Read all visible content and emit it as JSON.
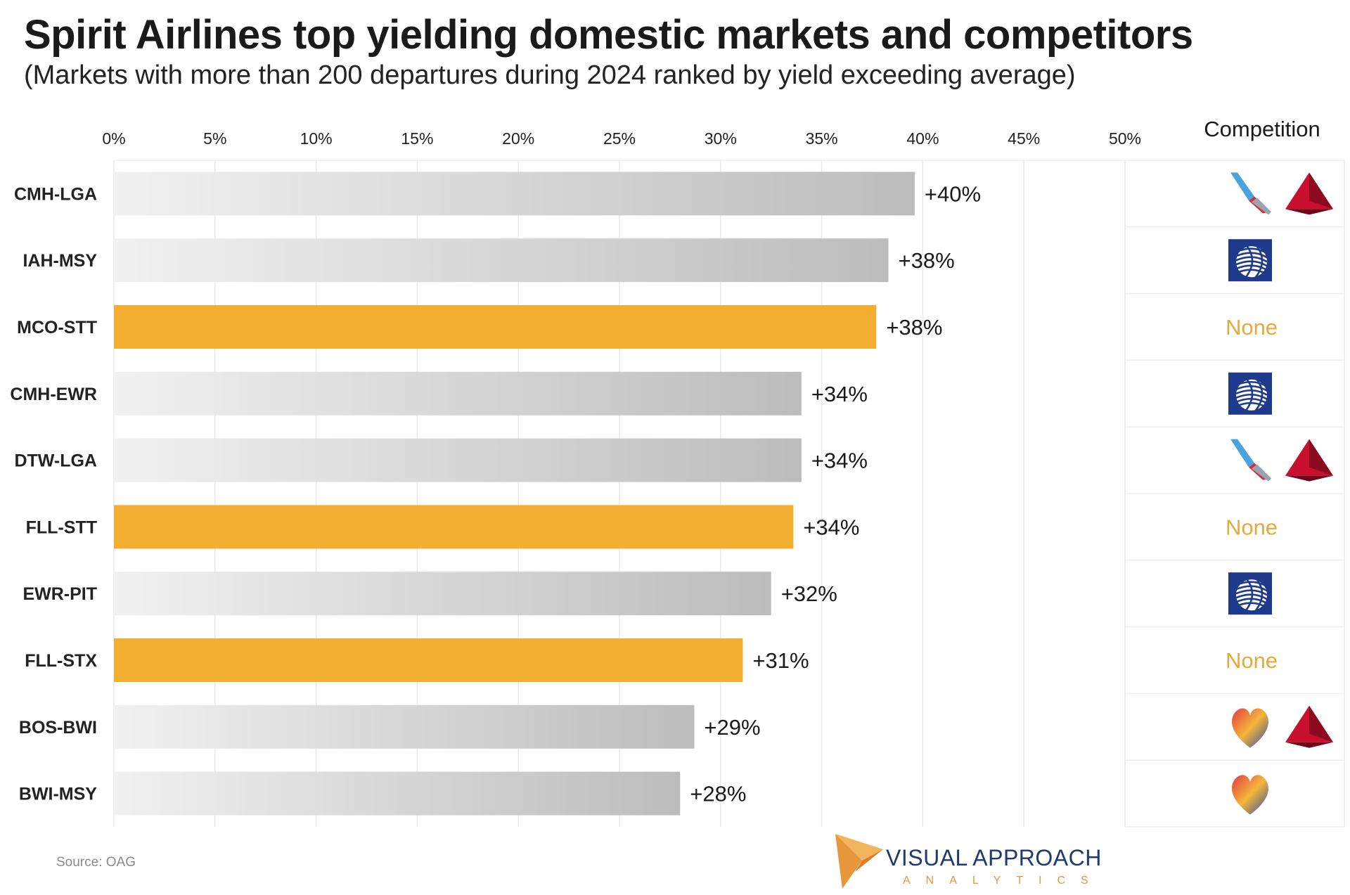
{
  "title": "Spirit Airlines top yielding domestic markets and competitors",
  "subtitle": "(Markets with more than 200 departures during 2024 ranked by yield exceeding average)",
  "source": "Source:  OAG",
  "branding": {
    "name": "VISUAL APPROACH",
    "tagline": "ANALYTICS"
  },
  "colors": {
    "highlight": "#f2ae31",
    "gray_light": "#f1f1f1",
    "gray_dark": "#bcbcbc",
    "none_text": "#e8a93b"
  },
  "chart_data": {
    "type": "bar",
    "orientation": "horizontal",
    "title": "Spirit Airlines top yielding domestic markets and competitors",
    "xlabel": "",
    "ylabel": "",
    "xlim": [
      0,
      50
    ],
    "x_ticks": [
      0,
      5,
      10,
      15,
      20,
      25,
      30,
      35,
      40,
      45,
      50
    ],
    "x_tick_labels": [
      "0%",
      "5%",
      "10%",
      "15%",
      "20%",
      "25%",
      "30%",
      "35%",
      "40%",
      "45%",
      "50%"
    ],
    "grid": true,
    "categories": [
      "CMH-LGA",
      "IAH-MSY",
      "MCO-STT",
      "CMH-EWR",
      "DTW-LGA",
      "FLL-STT",
      "EWR-PIT",
      "FLL-STX",
      "BOS-BWI",
      "BWI-MSY"
    ],
    "values": [
      39.6,
      38.3,
      37.7,
      34.0,
      34.0,
      33.6,
      32.5,
      31.1,
      28.7,
      28.0
    ],
    "value_labels": [
      "+40%",
      "+38%",
      "+38%",
      "+34%",
      "+34%",
      "+34%",
      "+32%",
      "+31%",
      "+29%",
      "+28%"
    ],
    "highlighted": [
      false,
      false,
      true,
      false,
      false,
      true,
      false,
      true,
      false,
      false
    ],
    "competition_header": "Competition",
    "competition": [
      [
        "american-airlines",
        "delta"
      ],
      [
        "united"
      ],
      [],
      [
        "united"
      ],
      [
        "american-airlines",
        "delta"
      ],
      [],
      [
        "united"
      ],
      [],
      [
        "southwest",
        "delta"
      ],
      [
        "southwest"
      ]
    ],
    "none_label": "None"
  }
}
